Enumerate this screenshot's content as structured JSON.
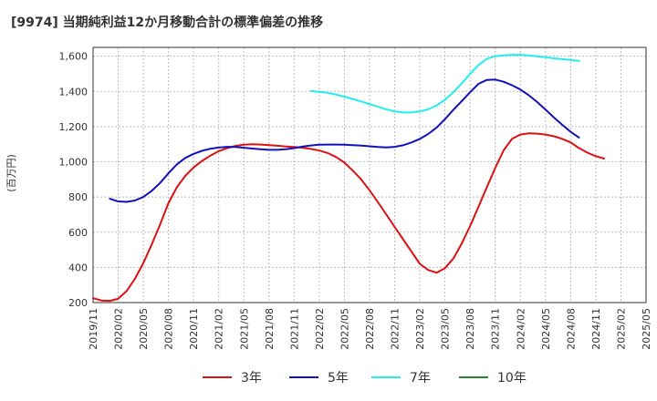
{
  "chart_data": {
    "type": "line",
    "title": "[9974]  当期純利益12か月移動合計の標準偏差の推移",
    "ylabel": "(百万円)",
    "xlabel": "",
    "ylim": [
      200,
      1650
    ],
    "yticks": [
      200,
      400,
      600,
      800,
      1000,
      1200,
      1400,
      1600
    ],
    "ytick_labels": [
      "200",
      "400",
      "600",
      "800",
      "1,000",
      "1,200",
      "1,400",
      "1,600"
    ],
    "xticks": [
      "2019/11",
      "2020/02",
      "2020/05",
      "2020/08",
      "2020/11",
      "2021/02",
      "2021/05",
      "2021/08",
      "2021/11",
      "2022/02",
      "2022/05",
      "2022/08",
      "2022/11",
      "2023/02",
      "2023/05",
      "2023/08",
      "2023/11",
      "2024/02",
      "2024/05",
      "2024/08",
      "2024/11",
      "2025/02",
      "2025/05"
    ],
    "grid": true,
    "legend_position": "bottom",
    "series": [
      {
        "name": "3年",
        "color": "#dd1111",
        "start": "2019/11",
        "values": [
          225,
          212,
          210,
          222,
          265,
          335,
          425,
          530,
          645,
          765,
          855,
          920,
          968,
          1005,
          1035,
          1060,
          1078,
          1090,
          1097,
          1100,
          1098,
          1095,
          1091,
          1087,
          1084,
          1080,
          1073,
          1064,
          1050,
          1027,
          995,
          950,
          900,
          838,
          770,
          700,
          630,
          560,
          490,
          420,
          385,
          370,
          395,
          450,
          535,
          635,
          745,
          855,
          965,
          1065,
          1130,
          1155,
          1162,
          1160,
          1155,
          1145,
          1130,
          1110,
          1078,
          1052,
          1032,
          1018
        ]
      },
      {
        "name": "5年",
        "color": "#1111bb",
        "start": "2020/01",
        "values": [
          790,
          775,
          772,
          780,
          800,
          835,
          880,
          935,
          985,
          1022,
          1045,
          1062,
          1074,
          1081,
          1085,
          1084,
          1080,
          1075,
          1071,
          1068,
          1068,
          1071,
          1078,
          1086,
          1093,
          1097,
          1098,
          1098,
          1097,
          1095,
          1092,
          1088,
          1084,
          1082,
          1085,
          1094,
          1110,
          1130,
          1158,
          1195,
          1242,
          1295,
          1345,
          1395,
          1443,
          1465,
          1467,
          1455,
          1435,
          1410,
          1378,
          1340,
          1297,
          1252,
          1210,
          1170,
          1138
        ]
      },
      {
        "name": "7年",
        "color": "#22eeee",
        "start": "2022/01",
        "values": [
          1402,
          1398,
          1392,
          1382,
          1370,
          1357,
          1343,
          1328,
          1313,
          1298,
          1286,
          1280,
          1280,
          1286,
          1298,
          1320,
          1352,
          1395,
          1445,
          1500,
          1550,
          1585,
          1600,
          1605,
          1608,
          1608,
          1605,
          1600,
          1594,
          1588,
          1583,
          1578,
          1573
        ]
      },
      {
        "name": "10年",
        "color": "#228822",
        "start": "2019/11",
        "values": []
      }
    ]
  }
}
